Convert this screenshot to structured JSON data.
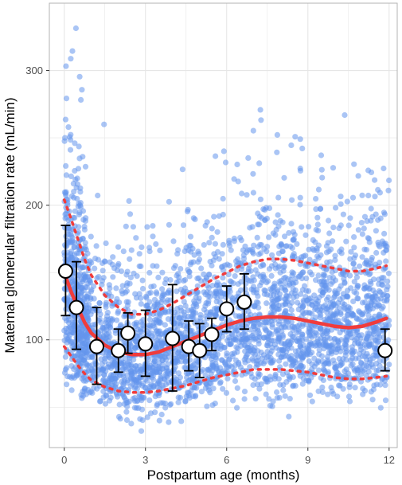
{
  "chart_data": {
    "type": "scatter",
    "title": "",
    "xlabel": "Postpartum age (months)",
    "ylabel": "Maternal glomerular filtration rate (mL/min)",
    "xlim": [
      -0.55,
      12.3
    ],
    "ylim": [
      20,
      350
    ],
    "x_ticks": [
      0,
      3,
      6,
      9,
      12
    ],
    "y_ticks": [
      100,
      200,
      300
    ],
    "grid": true,
    "legend": "none",
    "colors": {
      "points": "#6495ED",
      "fit": "#F03C3C",
      "band": "#F03C3C",
      "gridline": "#e6e6e6",
      "panel_border": "#b3b3b3"
    },
    "scatter_cloud": {
      "description_of_density": "dense individual observations",
      "n_points": 3400,
      "x_range": [
        0,
        12
      ],
      "center": "follows fit line",
      "y_min": 28,
      "y_max": 340
    },
    "fit_line": {
      "x": [
        0,
        0.25,
        0.5,
        0.75,
        1,
        1.5,
        2,
        2.5,
        3,
        3.5,
        4,
        4.5,
        5,
        5.5,
        6,
        6.5,
        7,
        7.5,
        8,
        8.5,
        9,
        9.5,
        10,
        10.5,
        11,
        11.5,
        11.9
      ],
      "y": [
        150,
        136,
        124,
        113,
        105,
        96,
        91,
        89,
        89,
        91,
        95,
        99,
        103,
        107,
        111,
        114,
        116,
        117,
        117,
        116,
        114,
        112,
        110,
        109,
        110,
        113,
        116
      ]
    },
    "upper_band": {
      "x": [
        0,
        0.25,
        0.5,
        0.75,
        1,
        1.5,
        2,
        2.5,
        3,
        3.5,
        4,
        4.5,
        5,
        5.5,
        6,
        6.5,
        7,
        7.5,
        8,
        8.5,
        9,
        9.5,
        10,
        10.5,
        11,
        11.5,
        11.9
      ],
      "y": [
        204,
        190,
        175,
        160,
        148,
        133,
        124,
        119,
        119,
        122,
        127,
        133,
        139,
        145,
        150,
        155,
        158,
        160,
        160,
        159,
        157,
        155,
        153,
        151,
        151,
        153,
        155
      ]
    },
    "lower_band": {
      "x": [
        0,
        0.25,
        0.5,
        0.75,
        1,
        1.5,
        2,
        2.5,
        3,
        3.5,
        4,
        4.5,
        5,
        5.5,
        6,
        6.5,
        7,
        7.5,
        8,
        8.5,
        9,
        9.5,
        10,
        10.5,
        11,
        11.5,
        11.9
      ],
      "y": [
        95,
        88,
        81,
        75,
        70,
        65,
        62,
        61,
        61,
        62,
        64,
        66,
        69,
        72,
        74,
        76,
        78,
        78,
        78,
        77,
        76,
        74,
        72,
        71,
        71,
        72,
        73
      ]
    },
    "group_means": [
      {
        "x": 0.05,
        "y": 151,
        "lower": 118,
        "upper": 185
      },
      {
        "x": 0.45,
        "y": 124,
        "lower": 93,
        "upper": 158
      },
      {
        "x": 1.2,
        "y": 95,
        "lower": 67,
        "upper": 124
      },
      {
        "x": 2.0,
        "y": 92,
        "lower": 76,
        "upper": 108
      },
      {
        "x": 2.35,
        "y": 105,
        "lower": 90,
        "upper": 120
      },
      {
        "x": 3.0,
        "y": 97,
        "lower": 73,
        "upper": 122
      },
      {
        "x": 4.0,
        "y": 101,
        "lower": 62,
        "upper": 141
      },
      {
        "x": 4.6,
        "y": 95,
        "lower": 77,
        "upper": 114
      },
      {
        "x": 5.0,
        "y": 92,
        "lower": 72,
        "upper": 112
      },
      {
        "x": 5.45,
        "y": 104,
        "lower": 92,
        "upper": 116
      },
      {
        "x": 6.0,
        "y": 123,
        "lower": 106,
        "upper": 140
      },
      {
        "x": 6.65,
        "y": 128,
        "lower": 108,
        "upper": 149
      },
      {
        "x": 11.85,
        "y": 92,
        "lower": 77,
        "upper": 108
      }
    ]
  }
}
